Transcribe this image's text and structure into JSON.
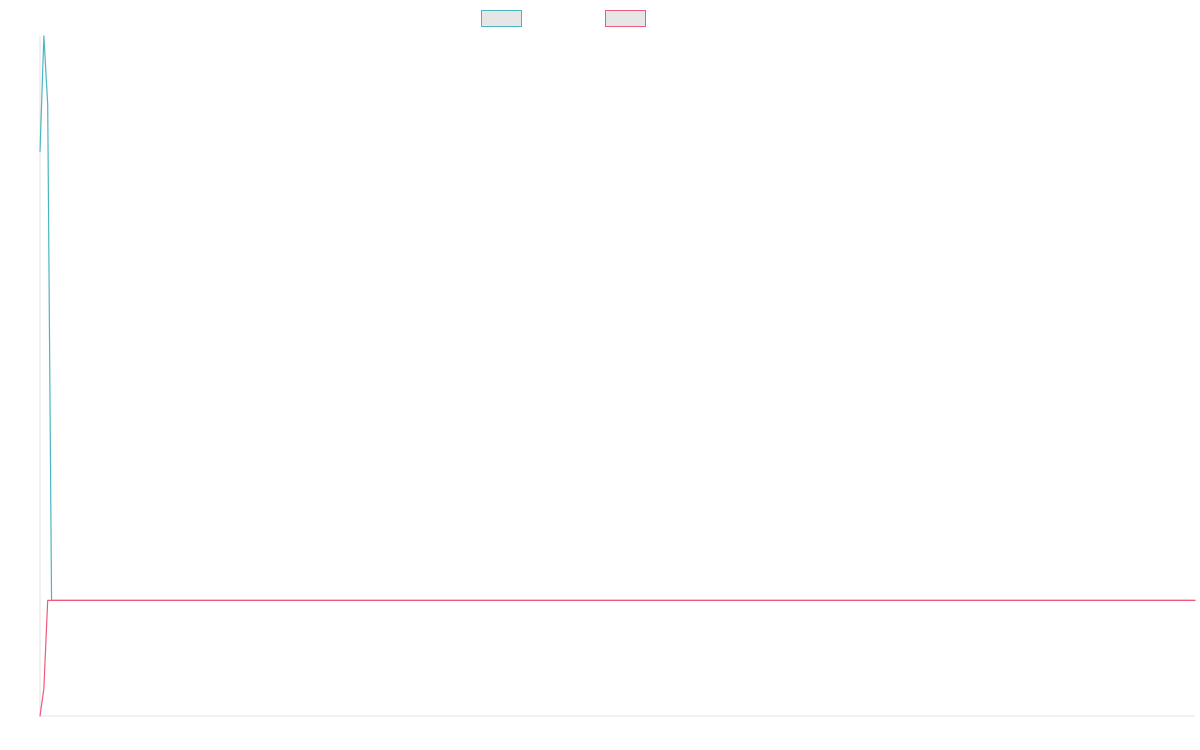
{
  "chart_data": {
    "type": "line",
    "title": "",
    "xlabel": "",
    "ylabel": "",
    "grid": false,
    "legend": "top-center",
    "x": [
      0,
      1,
      2,
      3,
      4,
      5,
      6,
      7,
      8,
      9,
      10,
      20,
      40,
      60,
      80,
      100,
      120,
      140,
      160,
      180,
      200,
      220,
      240,
      260,
      280,
      300
    ],
    "xlim": [
      0,
      300
    ],
    "ylim": [
      0,
      1
    ],
    "series": [
      {
        "name": "",
        "color": "#4bb6c1",
        "fill": "#e6e6e6",
        "values": [
          0.83,
          1.0,
          0.9,
          0.17,
          0.17,
          0.17,
          0.17,
          0.17,
          0.17,
          0.17,
          0.17,
          0.17,
          0.17,
          0.17,
          0.17,
          0.17,
          0.17,
          0.17,
          0.17,
          0.17,
          0.17,
          0.17,
          0.17,
          0.17,
          0.17,
          0.17
        ]
      },
      {
        "name": "",
        "color": "#f0597c",
        "fill": "#e6e6e6",
        "values": [
          0.0,
          0.04,
          0.17,
          0.17,
          0.17,
          0.17,
          0.17,
          0.17,
          0.17,
          0.17,
          0.17,
          0.17,
          0.17,
          0.17,
          0.17,
          0.17,
          0.17,
          0.17,
          0.17,
          0.17,
          0.17,
          0.17,
          0.17,
          0.17,
          0.17,
          0.17
        ]
      }
    ]
  }
}
